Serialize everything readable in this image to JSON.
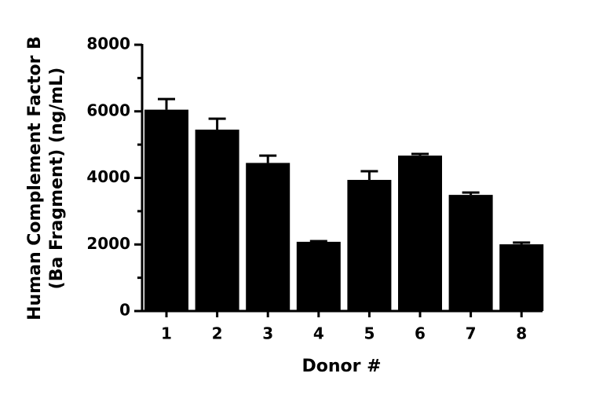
{
  "chart_data": {
    "type": "bar",
    "y_label": [
      "Human Complement Factor B",
      "(Ba Fragment) (ng/mL)"
    ],
    "x_label": "Donor #",
    "categories": [
      "1",
      "2",
      "3",
      "4",
      "5",
      "6",
      "7",
      "8"
    ],
    "values": [
      6050,
      5450,
      4450,
      2080,
      3940,
      4670,
      3490,
      2005
    ],
    "errors": [
      320,
      330,
      220,
      20,
      260,
      50,
      70,
      50
    ],
    "color": "#000000",
    "ylim": [
      0,
      8000
    ],
    "yticks": [
      0,
      2000,
      4000,
      6000,
      8000
    ],
    "yminorticks": [
      1000,
      3000,
      5000,
      7000
    ]
  }
}
